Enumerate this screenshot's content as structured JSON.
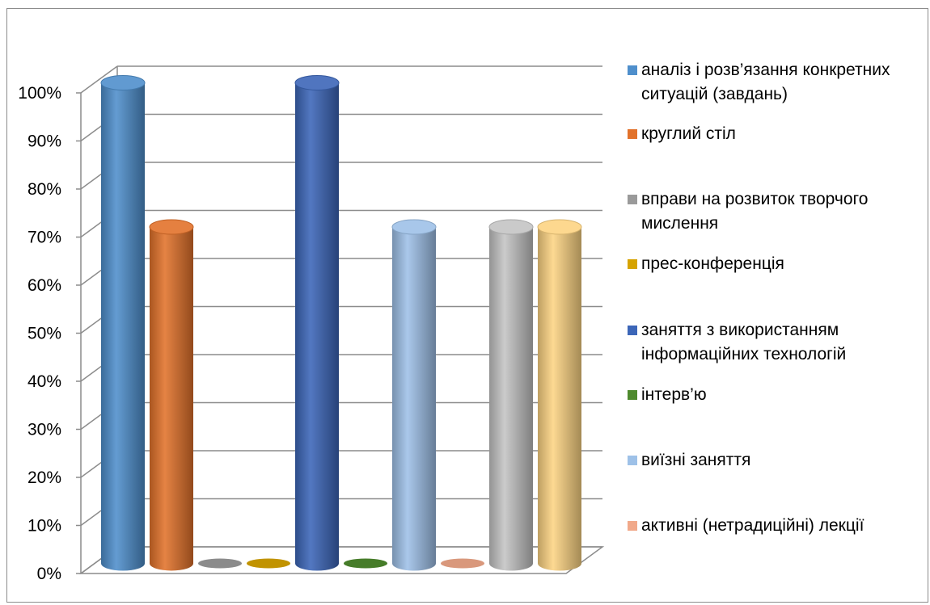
{
  "chart_data": {
    "type": "bar",
    "style": "3d-cylinder",
    "yticks": [
      "0%",
      "10%",
      "20%",
      "30%",
      "40%",
      "50%",
      "60%",
      "70%",
      "80%",
      "90%",
      "100%"
    ],
    "ylim": [
      0,
      100
    ],
    "grid": true,
    "legend_position": "right",
    "series": [
      {
        "name": "аналіз і розв’язання конкретних ситуацій (завдань)",
        "value": 100,
        "color": "#4f8fcc"
      },
      {
        "name": "круглий стіл",
        "value": 70,
        "color": "#e2722b"
      },
      {
        "name": "вправи на розвиток творчого мислення",
        "value": 0,
        "color": "#9a9a9a"
      },
      {
        "name": "прес-конференція",
        "value": 0,
        "color": "#d6a300"
      },
      {
        "name": "заняття з використанням інформаційних технологій",
        "value": 100,
        "color": "#3c66b8"
      },
      {
        "name": "інтерв’ю",
        "value": 0,
        "color": "#4e8a2e"
      },
      {
        "name": "виїзні заняття",
        "value": 70,
        "color": "#9ec1e8"
      },
      {
        "name": "активні (нетрадиційні) лекції",
        "value": 0,
        "color": "#f1a98a"
      },
      {
        "name": "",
        "value": 70,
        "color": "#c4c4c4"
      },
      {
        "name": "",
        "value": 70,
        "color": "#fdd483"
      }
    ]
  }
}
